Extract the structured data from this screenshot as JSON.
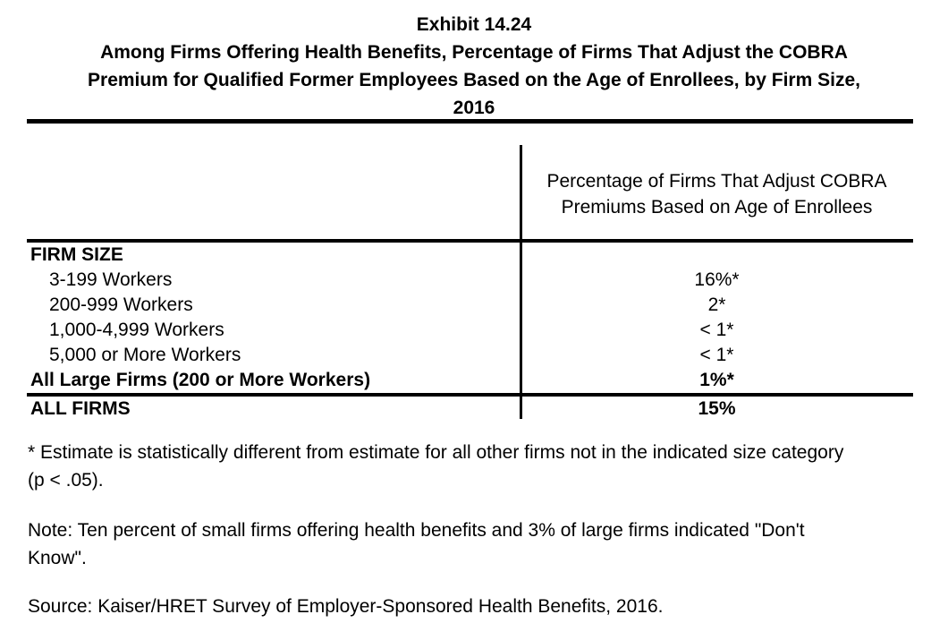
{
  "title": {
    "lines": [
      "Exhibit 14.24",
      "Among Firms Offering Health Benefits, Percentage of Firms That Adjust the COBRA",
      "Premium for Qualified Former Employees Based on the Age of Enrollees, by Firm Size,",
      "2016"
    ]
  },
  "table": {
    "column_header": {
      "line1": "Percentage of Firms That Adjust COBRA",
      "line2": "Premiums Based on Age of Enrollees"
    },
    "rows": [
      {
        "label": "FIRM SIZE",
        "value": ""
      },
      {
        "label": "3-199 Workers",
        "value": "16%*"
      },
      {
        "label": "200-999 Workers",
        "value": "2*"
      },
      {
        "label": "1,000-4,999 Workers",
        "value": "< 1*"
      },
      {
        "label": "5,000 or More Workers",
        "value": "< 1*"
      },
      {
        "label": "All Large Firms (200 or More Workers)",
        "value": "1%*"
      },
      {
        "label": "ALL FIRMS",
        "value": "15%"
      }
    ]
  },
  "footnotes": {
    "star": {
      "lines": [
        "* Estimate is statistically different from estimate for all other firms not in the indicated size category",
        "(p < .05)."
      ]
    },
    "note": {
      "lines": [
        "Note: Ten percent of small firms offering health benefits and 3% of large firms indicated \"Don't",
        "Know\"."
      ]
    },
    "source": {
      "lines": [
        "Source: Kaiser/HRET Survey of Employer-Sponsored Health Benefits, 2016."
      ]
    }
  },
  "colors": {
    "text": "#000000",
    "background": "#ffffff"
  }
}
